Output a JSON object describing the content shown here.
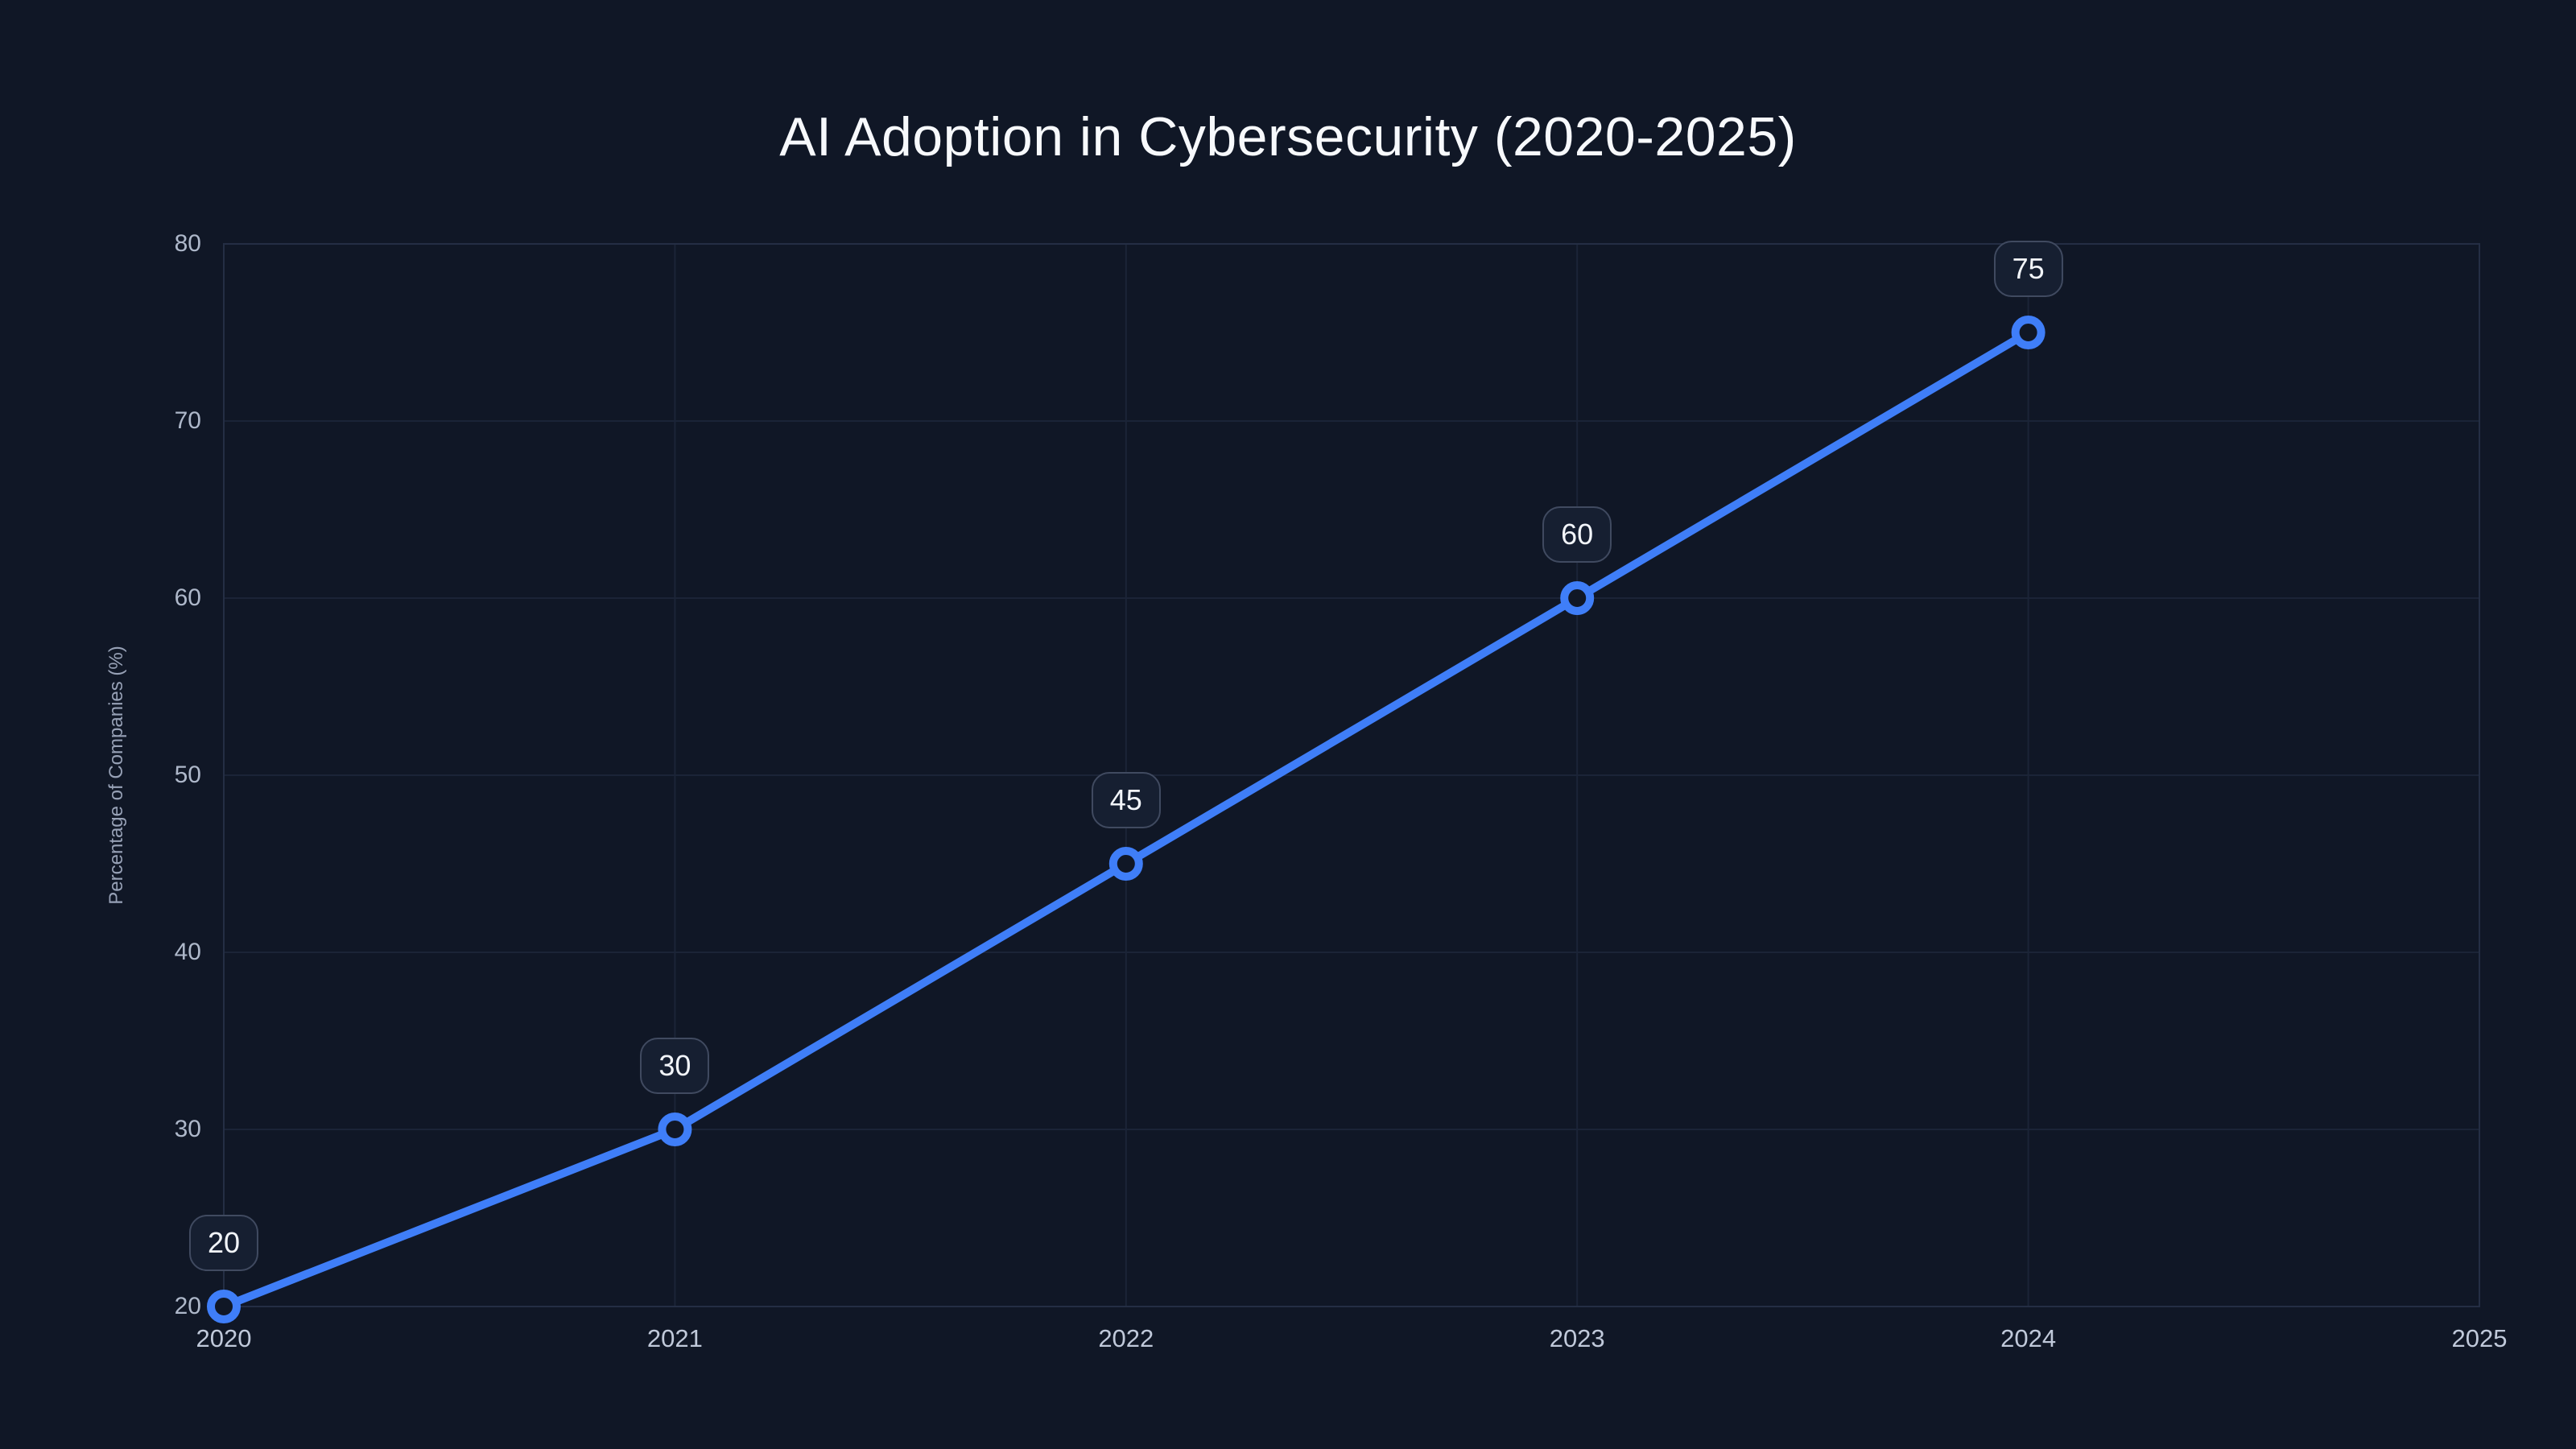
{
  "page": {
    "background_color": "#101726"
  },
  "chart_data": {
    "type": "line",
    "title": "AI Adoption in Cybersecurity (2020-2025)",
    "xlabel": "",
    "ylabel": "Percentage of Companies (%)",
    "x": [
      2020,
      2021,
      2022,
      2023,
      2024
    ],
    "values": [
      20,
      30,
      45,
      60,
      75
    ],
    "data_labels": [
      "20",
      "30",
      "45",
      "60",
      "75"
    ],
    "xticks": [
      2020,
      2021,
      2022,
      2023,
      2024,
      2025
    ],
    "yticks": [
      20,
      30,
      40,
      50,
      60,
      70,
      80
    ],
    "xlim": [
      2020,
      2025
    ],
    "ylim": [
      20,
      80
    ],
    "grid": true,
    "legend": false,
    "marker_style": "open-circle",
    "colors": {
      "background": "#101726",
      "series_line": "#3f7ef8",
      "marker_stroke": "#3f7ef8",
      "marker_fill": "#101726",
      "grid_line": "#1b2437",
      "plot_border": "#242e44",
      "title_text": "#f7f9fc",
      "y_tick_text": "#aeb8ca",
      "x_tick_text": "#c0c9da",
      "axis_label_text": "#97a1b6",
      "data_label_bg": "#161f31",
      "data_label_border": "#404a60",
      "data_label_text": "#f2f5fa"
    }
  }
}
